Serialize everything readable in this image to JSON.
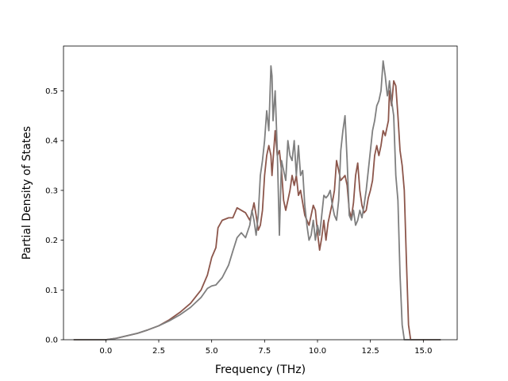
{
  "chart_data": {
    "type": "line",
    "title": "",
    "xlabel": "Frequency (THz)",
    "ylabel": "Partial Density of States",
    "xlim": [
      -2.0,
      16.6
    ],
    "ylim": [
      0,
      0.59
    ],
    "xticks": [
      0.0,
      2.5,
      5.0,
      7.5,
      10.0,
      12.5,
      15.0
    ],
    "xtick_labels": [
      "0.0",
      "2.5",
      "5.0",
      "7.5",
      "10.0",
      "12.5",
      "15.0"
    ],
    "yticks": [
      0.0,
      0.1,
      0.2,
      0.3,
      0.4,
      0.5
    ],
    "ytick_labels": [
      "0.0",
      "0.1",
      "0.2",
      "0.3",
      "0.4",
      "0.5"
    ],
    "grid": false,
    "legend": "none",
    "series": [
      {
        "color": "#8c564b",
        "x": [
          -1.5,
          0.0,
          0.5,
          1.0,
          1.5,
          2.0,
          2.5,
          3.0,
          3.5,
          4.0,
          4.5,
          4.8,
          5.0,
          5.2,
          5.3,
          5.5,
          5.8,
          6.0,
          6.2,
          6.4,
          6.6,
          6.8,
          6.9,
          7.0,
          7.1,
          7.2,
          7.3,
          7.4,
          7.5,
          7.6,
          7.7,
          7.8,
          7.85,
          7.9,
          8.0,
          8.1,
          8.2,
          8.3,
          8.4,
          8.5,
          8.6,
          8.7,
          8.8,
          8.9,
          9.0,
          9.1,
          9.2,
          9.3,
          9.4,
          9.5,
          9.6,
          9.7,
          9.8,
          9.9,
          10.0,
          10.1,
          10.2,
          10.3,
          10.4,
          10.5,
          10.6,
          10.7,
          10.8,
          10.9,
          11.0,
          11.1,
          11.2,
          11.3,
          11.4,
          11.5,
          11.6,
          11.7,
          11.8,
          11.9,
          12.0,
          12.1,
          12.2,
          12.3,
          12.4,
          12.5,
          12.6,
          12.7,
          12.8,
          12.9,
          13.0,
          13.1,
          13.2,
          13.3,
          13.35,
          13.4,
          13.5,
          13.6,
          13.7,
          13.8,
          13.9,
          14.0,
          14.1,
          14.2,
          14.3,
          14.4,
          14.5,
          15.8
        ],
        "y": [
          0.0,
          0.0,
          0.003,
          0.008,
          0.013,
          0.02,
          0.028,
          0.04,
          0.055,
          0.073,
          0.1,
          0.13,
          0.165,
          0.185,
          0.225,
          0.24,
          0.245,
          0.245,
          0.265,
          0.26,
          0.255,
          0.24,
          0.255,
          0.275,
          0.25,
          0.22,
          0.23,
          0.26,
          0.33,
          0.37,
          0.39,
          0.37,
          0.33,
          0.36,
          0.42,
          0.37,
          0.38,
          0.34,
          0.28,
          0.26,
          0.28,
          0.3,
          0.33,
          0.31,
          0.33,
          0.29,
          0.3,
          0.275,
          0.25,
          0.24,
          0.23,
          0.25,
          0.27,
          0.26,
          0.215,
          0.18,
          0.205,
          0.24,
          0.2,
          0.235,
          0.255,
          0.275,
          0.3,
          0.36,
          0.34,
          0.32,
          0.325,
          0.33,
          0.31,
          0.26,
          0.245,
          0.275,
          0.33,
          0.355,
          0.3,
          0.27,
          0.255,
          0.26,
          0.285,
          0.3,
          0.32,
          0.37,
          0.39,
          0.37,
          0.39,
          0.42,
          0.41,
          0.43,
          0.44,
          0.5,
          0.47,
          0.52,
          0.51,
          0.45,
          0.38,
          0.35,
          0.3,
          0.16,
          0.03,
          0.0,
          0.0,
          0.0
        ]
      },
      {
        "color": "#7f7f7f",
        "x": [
          -1.5,
          0.0,
          0.5,
          1.0,
          1.5,
          2.0,
          2.5,
          3.0,
          3.5,
          4.0,
          4.5,
          4.8,
          5.0,
          5.2,
          5.5,
          5.8,
          6.0,
          6.2,
          6.4,
          6.6,
          6.8,
          6.9,
          7.0,
          7.1,
          7.2,
          7.3,
          7.4,
          7.5,
          7.6,
          7.7,
          7.8,
          7.85,
          7.9,
          8.0,
          8.1,
          8.2,
          8.3,
          8.4,
          8.5,
          8.6,
          8.7,
          8.8,
          8.9,
          9.0,
          9.1,
          9.2,
          9.3,
          9.4,
          9.5,
          9.6,
          9.7,
          9.8,
          9.9,
          10.0,
          10.1,
          10.2,
          10.3,
          10.4,
          10.5,
          10.6,
          10.7,
          10.8,
          10.9,
          11.0,
          11.1,
          11.2,
          11.3,
          11.4,
          11.5,
          11.6,
          11.7,
          11.8,
          11.9,
          12.0,
          12.1,
          12.2,
          12.3,
          12.4,
          12.5,
          12.6,
          12.7,
          12.8,
          12.9,
          13.0,
          13.1,
          13.2,
          13.3,
          13.35,
          13.4,
          13.5,
          13.6,
          13.7,
          13.8,
          13.9,
          14.0,
          14.1,
          14.2,
          14.3,
          14.4,
          14.5,
          15.8
        ],
        "y": [
          0.0,
          0.0,
          0.003,
          0.008,
          0.013,
          0.02,
          0.028,
          0.038,
          0.05,
          0.065,
          0.085,
          0.103,
          0.108,
          0.11,
          0.125,
          0.15,
          0.178,
          0.205,
          0.215,
          0.205,
          0.23,
          0.26,
          0.24,
          0.21,
          0.25,
          0.33,
          0.36,
          0.4,
          0.46,
          0.42,
          0.55,
          0.53,
          0.44,
          0.5,
          0.38,
          0.21,
          0.36,
          0.34,
          0.32,
          0.4,
          0.37,
          0.36,
          0.4,
          0.33,
          0.39,
          0.33,
          0.34,
          0.27,
          0.23,
          0.2,
          0.21,
          0.24,
          0.2,
          0.23,
          0.21,
          0.25,
          0.29,
          0.285,
          0.29,
          0.3,
          0.27,
          0.25,
          0.24,
          0.28,
          0.38,
          0.42,
          0.45,
          0.36,
          0.25,
          0.24,
          0.26,
          0.23,
          0.24,
          0.26,
          0.245,
          0.27,
          0.3,
          0.34,
          0.38,
          0.42,
          0.44,
          0.47,
          0.48,
          0.5,
          0.56,
          0.53,
          0.49,
          0.5,
          0.52,
          0.48,
          0.45,
          0.33,
          0.28,
          0.13,
          0.03,
          0.0,
          0.0,
          0.0,
          0.0,
          0.0,
          0.0
        ]
      }
    ]
  }
}
